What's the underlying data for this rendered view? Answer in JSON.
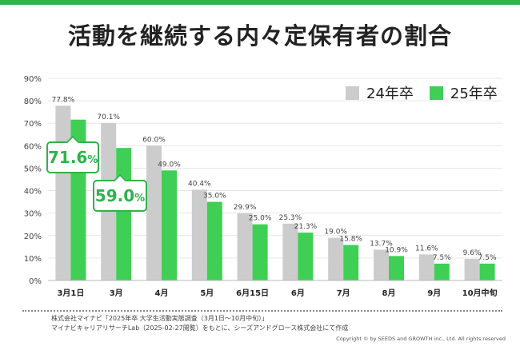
{
  "title": "活動を継続する内々定保有者の割合",
  "legend": [
    {
      "label": "24年卒",
      "color": "#cccccc"
    },
    {
      "label": "25年卒",
      "color": "#3fcf55"
    }
  ],
  "callouts": [
    {
      "number": "71.6",
      "unit": "%"
    },
    {
      "number": "59.0",
      "unit": "%"
    }
  ],
  "source_lines": [
    "株式会社マイナビ「2025年卒 大学生活動実態調査（3月1日～10月中旬）」",
    "マイナビキャリアリサーチLab（2025-02-27閲覧）をもとに、シーズアンドグロース株式会社にて作成"
  ],
  "copyright": "Copyright © by SEEDS and GROWTH inc., Ltd. All rights reserved",
  "chart_data": {
    "type": "bar",
    "title": "活動を継続する内々定保有者の割合",
    "categories": [
      "3月1日",
      "3月",
      "4月",
      "5月",
      "6月15日",
      "6月",
      "7月",
      "8月",
      "9月",
      "10月中旬"
    ],
    "series": [
      {
        "name": "24年卒",
        "values": [
          77.8,
          70.1,
          60.0,
          40.4,
          29.9,
          25.3,
          19.0,
          13.7,
          11.6,
          9.6
        ],
        "color": "#cccccc"
      },
      {
        "name": "25年卒",
        "values": [
          71.6,
          59.0,
          49.0,
          35.0,
          25.0,
          21.3,
          15.8,
          10.9,
          7.5,
          7.5
        ],
        "color": "#3fcf55"
      }
    ],
    "yticks": [
      "0%",
      "10%",
      "20%",
      "30%",
      "40%",
      "50%",
      "60%",
      "70%",
      "80%",
      "90%"
    ],
    "ylim": [
      0,
      90
    ],
    "grid": true,
    "legend_position": "top-right",
    "value_labels": {
      "24年卒": [
        "77.8%",
        "70.1%",
        "60.0%",
        "40.4%",
        "29.9%",
        "25.3%",
        "19.0%",
        "13.7%",
        "11.6%",
        "9.6%"
      ],
      "25年卒": [
        "",
        "",
        "49.0%",
        "35.0%",
        "25.0%",
        "21.3%",
        "15.8%",
        "10.9%",
        "7.5%",
        "7.5%"
      ]
    }
  }
}
